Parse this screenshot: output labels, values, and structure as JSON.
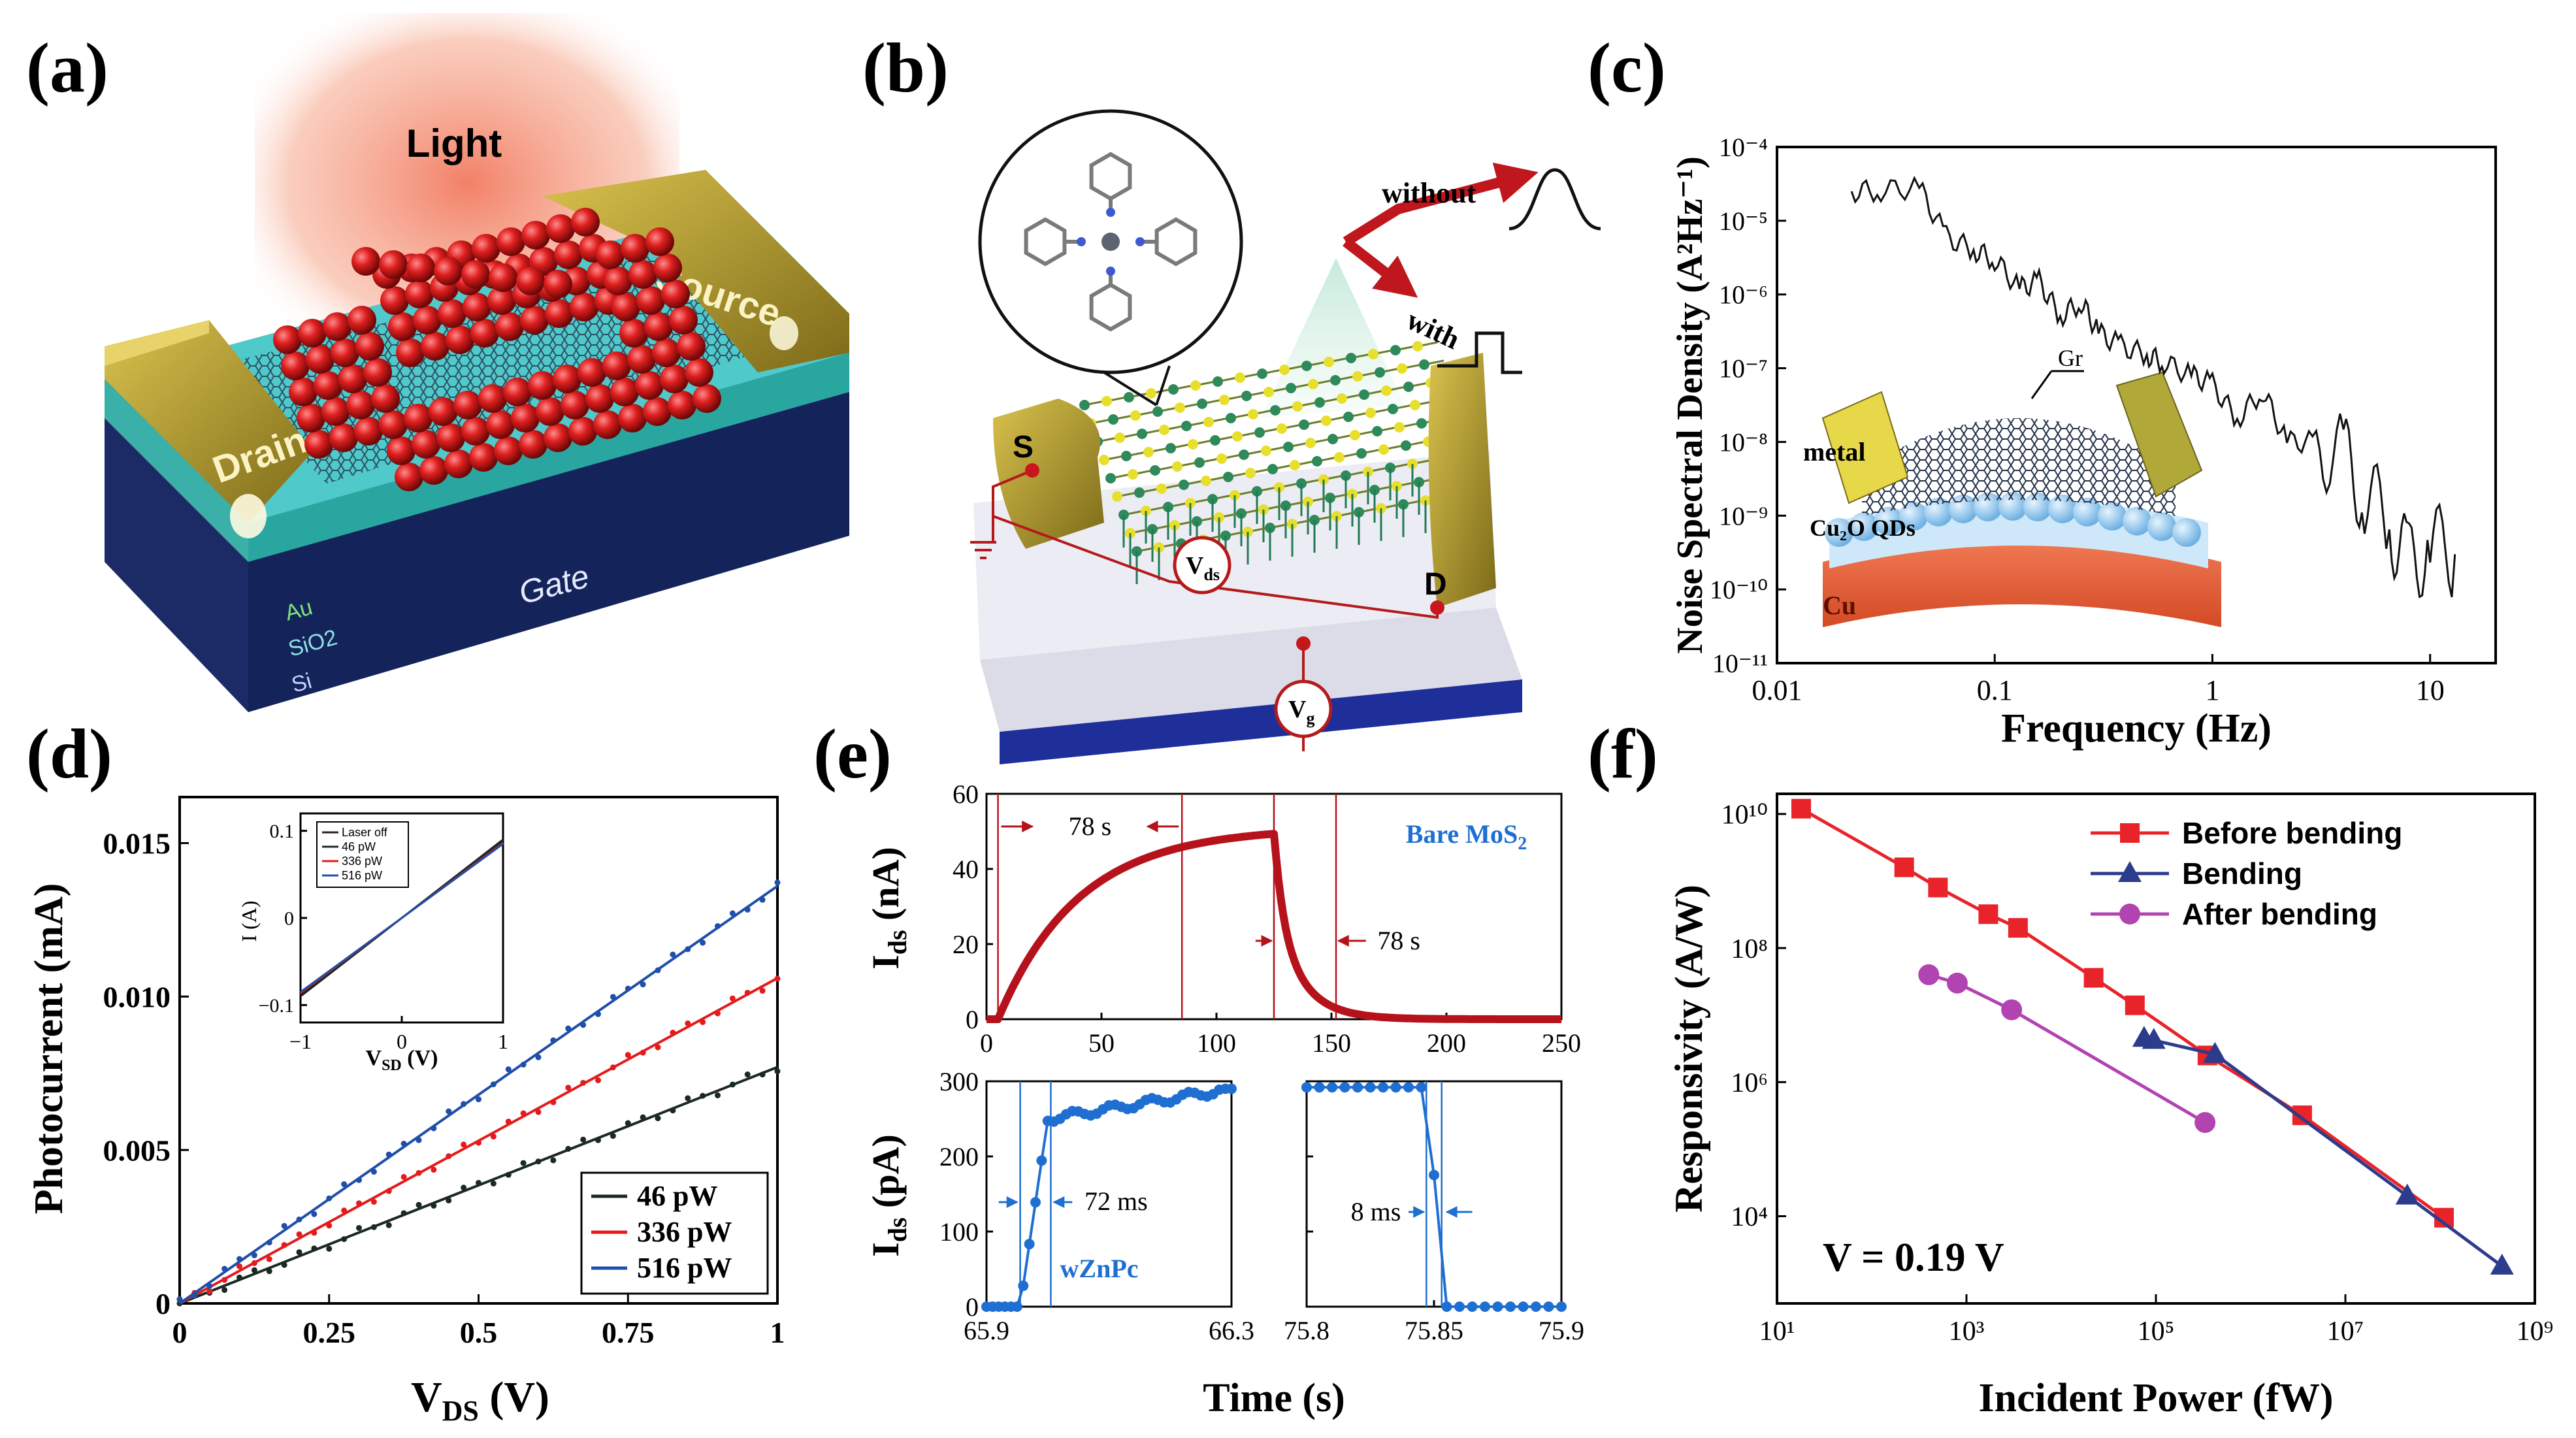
{
  "colors": {
    "gold": "#b8a23a",
    "red_qd": "#d21f1f",
    "blue_sub": "#23389a",
    "panel_e_red": "#b5121b",
    "panel_e_blue": "#1e6fd1",
    "line_46": "#1b2a20",
    "line_336": "#e41a1c",
    "line_516": "#1f4fa8",
    "f_before": "#e8232a",
    "f_bending": "#2d3b8c",
    "f_after": "#b144b0"
  },
  "panels": {
    "a": {
      "label": "(a)",
      "light": "Light",
      "source": "Source",
      "drain": "Drain",
      "gate": "Gate",
      "layers": [
        "Au",
        "SiO2",
        "Si"
      ]
    },
    "b": {
      "label": "(b)",
      "without": "without",
      "with": "with",
      "s": "S",
      "d": "D",
      "vds": "V",
      "vds_sub": "ds",
      "vg": "V",
      "vg_sub": "g"
    },
    "c": {
      "label": "(c)"
    },
    "d": {
      "label": "(d)"
    },
    "e": {
      "label": "(e)"
    },
    "f": {
      "label": "(f)"
    }
  },
  "chart_data": [
    {
      "id": "c",
      "type": "line",
      "xlabel": "Frequency (Hz)",
      "ylabel": "Noise Spectral Density (A²Hz⁻¹)",
      "xscale": "log",
      "yscale": "log",
      "xlim": [
        0.01,
        20
      ],
      "ylim": [
        1e-11,
        0.0001
      ],
      "xticks": [
        "0.01",
        "0.1",
        "1",
        "10"
      ],
      "yticks": [
        "10⁻¹¹",
        "10⁻¹⁰",
        "10⁻⁹",
        "10⁻⁸",
        "10⁻⁷",
        "10⁻⁶",
        "10⁻⁵",
        "10⁻⁴"
      ],
      "inset_labels": {
        "gr": "Gr",
        "metal": "metal",
        "qds": "Cu₂O QDs",
        "cu": "Cu"
      },
      "x": [
        0.022,
        0.03,
        0.045,
        0.06,
        0.08,
        0.1,
        0.13,
        0.16,
        0.2,
        0.25,
        0.3,
        0.38,
        0.5,
        0.6,
        0.8,
        1.0,
        1.3,
        1.7,
        2.2,
        3.0,
        4.0,
        5.0,
        6.5,
        8.0,
        10.0,
        13.0
      ],
      "y": [
        2.5e-05,
        2.6e-05,
        2.8e-05,
        6e-06,
        4e-06,
        3e-06,
        1.2e-06,
        1.5e-06,
        5e-07,
        8e-07,
        3e-07,
        2e-07,
        1.5e-07,
        1.2e-07,
        8e-08,
        6e-08,
        2e-08,
        5e-08,
        1e-08,
        1e-08,
        6e-09,
        2e-09,
        8e-10,
        2e-10,
        4e-10,
        3e-10
      ]
    },
    {
      "id": "d",
      "type": "line",
      "xlabel": "V",
      "xlabel_sub": "DS",
      "xlabel_unit": " (V)",
      "ylabel": "Photocurrent (mA)",
      "xlim": [
        0,
        1
      ],
      "ylim": [
        0,
        0.0165
      ],
      "xticks": [
        "0",
        "0.25",
        "0.5",
        "0.75",
        "1"
      ],
      "yticks": [
        "0",
        "0.005",
        "0.010",
        "0.015"
      ],
      "series": [
        {
          "name": "46 pW",
          "slope": 0.0077
        },
        {
          "name": "336 pW",
          "slope": 0.0106
        },
        {
          "name": "516 pW",
          "slope": 0.0136
        }
      ],
      "inset": {
        "xlabel": "V",
        "xlabel_sub": "SD",
        "xlabel_unit": " (V)",
        "ylabel": "I (A)",
        "xticks": [
          "−1",
          "0",
          "1"
        ],
        "yticks": [
          "−0.1",
          "0",
          "0.1"
        ],
        "legend": [
          "Laser off",
          "46 pW",
          "336 pW",
          "516 pW"
        ]
      }
    },
    {
      "id": "e-top",
      "type": "line",
      "ylabel": "I",
      "ylabel_sub": "ds",
      "ylabel_unit": " (nA)",
      "xlim": [
        0,
        250
      ],
      "ylim": [
        0,
        60
      ],
      "xticks": [
        "0",
        "50",
        "100",
        "150",
        "200",
        "250"
      ],
      "yticks": [
        "0",
        "20",
        "40",
        "60"
      ],
      "annotations": {
        "rise": "78 s",
        "fall": "78 s",
        "material": "Bare MoS",
        "material_sub": "2"
      },
      "on_time": 5,
      "off_time": 125,
      "peak": 50
    },
    {
      "id": "e-bottom",
      "type": "line",
      "ylabel": "I",
      "ylabel_sub": "ds",
      "ylabel_unit": " (pA)",
      "xlabel": "Time (s)",
      "left": {
        "xlim": [
          65.9,
          66.3
        ],
        "xticks": [
          "65.9",
          "66.3"
        ],
        "annotation": "72 ms",
        "material": "wZnPc"
      },
      "right": {
        "xlim": [
          75.8,
          75.9
        ],
        "xticks": [
          "75.8",
          "75.85",
          "75.9"
        ],
        "annotation": "8 ms"
      },
      "ylim": [
        0,
        300
      ],
      "yticks": [
        "0",
        "100",
        "200",
        "300"
      ]
    },
    {
      "id": "f",
      "type": "scatter",
      "xlabel": "Incident Power (fW)",
      "ylabel": "Responsivity (A/W)",
      "xscale": "log",
      "yscale": "log",
      "xlim": [
        10,
        1000000000.0
      ],
      "ylim": [
        500,
        20000000000.0
      ],
      "xticks": [
        "10¹",
        "10³",
        "10⁵",
        "10⁷",
        "10⁹"
      ],
      "yticks": [
        "10⁴",
        "10⁶",
        "10⁸",
        "10¹⁰"
      ],
      "annotation": "V = 0.19 V",
      "series": [
        {
          "name": "Before bending",
          "x": [
            18,
            220,
            500,
            1700,
            3500,
            22000,
            60000,
            350000,
            3500000,
            110000000
          ],
          "y": [
            12000000000,
            1600000000,
            800000000,
            320000000,
            200000000,
            36000000,
            14000000,
            2500000,
            320000,
            9500
          ]
        },
        {
          "name": "Bending",
          "x": [
            75000,
            95000,
            420000,
            45000000,
            450000000
          ],
          "y": [
            4500000,
            4200000,
            2600000,
            20000,
            1800
          ]
        },
        {
          "name": "After bending",
          "x": [
            400,
            800,
            3000,
            330000
          ],
          "y": [
            40000000,
            30000000,
            12000000,
            250000
          ]
        }
      ]
    }
  ]
}
